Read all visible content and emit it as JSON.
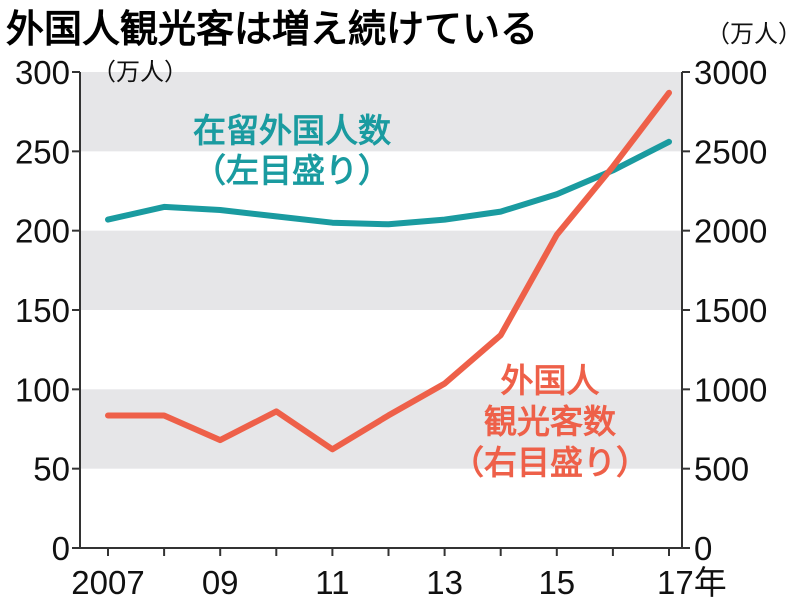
{
  "chart_data": {
    "type": "line",
    "title": "外国人観光客は増え続けている",
    "x": [
      2007,
      2008,
      2009,
      2010,
      2011,
      2012,
      2013,
      2014,
      2015,
      2016,
      2017
    ],
    "x_ticks": [
      {
        "value": 2007,
        "label": "2007"
      },
      {
        "value": 2009,
        "label": "09"
      },
      {
        "value": 2011,
        "label": "11"
      },
      {
        "value": 2013,
        "label": "13"
      },
      {
        "value": 2015,
        "label": "15"
      },
      {
        "value": 2017,
        "label": "17年"
      }
    ],
    "left_axis": {
      "unit": "（万人）",
      "ylim": [
        0,
        300
      ],
      "ticks": [
        0,
        50,
        100,
        150,
        200,
        250,
        300
      ]
    },
    "right_axis": {
      "unit": "（万人）",
      "ylim": [
        0,
        3000
      ],
      "ticks": [
        0,
        500,
        1000,
        1500,
        2000,
        2500,
        3000
      ]
    },
    "series": [
      {
        "label_lines": [
          "在留外国人数",
          "（左目盛り）"
        ],
        "axis": "left",
        "color": "#1a9ba0",
        "values": [
          207,
          215,
          213,
          209,
          205,
          204,
          207,
          212,
          223,
          238,
          256
        ]
      },
      {
        "label_lines": [
          "外国人",
          "観光客数",
          "（右目盛り）"
        ],
        "axis": "right",
        "color": "#ee6049",
        "values": [
          835,
          835,
          680,
          861,
          622,
          836,
          1036,
          1341,
          1974,
          2404,
          2869
        ]
      }
    ],
    "band_color": "#e6e6e8",
    "axis_color": "#333333"
  }
}
